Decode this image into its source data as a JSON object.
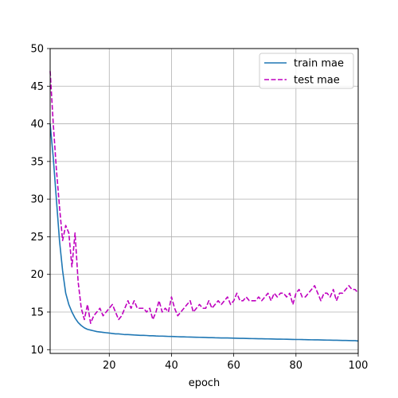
{
  "chart_data": {
    "type": "line",
    "title": "",
    "xlabel": "epoch",
    "ylabel": "",
    "xlim": [
      1,
      100
    ],
    "ylim": [
      9.5,
      50
    ],
    "xticks": [
      20,
      40,
      60,
      80,
      100
    ],
    "yticks": [
      10,
      15,
      20,
      25,
      30,
      35,
      40,
      45,
      50
    ],
    "grid": true,
    "legend": "top-right",
    "x": [
      1,
      2,
      3,
      4,
      5,
      6,
      7,
      8,
      9,
      10,
      11,
      12,
      13,
      14,
      15,
      16,
      17,
      18,
      19,
      20,
      21,
      22,
      23,
      24,
      25,
      26,
      27,
      28,
      29,
      30,
      31,
      32,
      33,
      34,
      35,
      36,
      37,
      38,
      39,
      40,
      41,
      42,
      43,
      44,
      45,
      46,
      47,
      48,
      49,
      50,
      51,
      52,
      53,
      54,
      55,
      56,
      57,
      58,
      59,
      60,
      61,
      62,
      63,
      64,
      65,
      66,
      67,
      68,
      69,
      70,
      71,
      72,
      73,
      74,
      75,
      76,
      77,
      78,
      79,
      80,
      81,
      82,
      83,
      84,
      85,
      86,
      87,
      88,
      89,
      90,
      91,
      92,
      93,
      94,
      95,
      96,
      97,
      98,
      99,
      100
    ],
    "series": [
      {
        "name": "train mae",
        "color": "#1f77b4",
        "style": "solid",
        "values": [
          40.0,
          35.5,
          30.0,
          24.5,
          20.5,
          17.5,
          16.0,
          15.0,
          14.2,
          13.6,
          13.2,
          12.9,
          12.7,
          12.6,
          12.5,
          12.4,
          12.35,
          12.3,
          12.25,
          12.2,
          12.15,
          12.1,
          12.1,
          12.05,
          12.0,
          12.0,
          11.98,
          11.95,
          11.93,
          11.9,
          11.9,
          11.88,
          11.85,
          11.85,
          11.82,
          11.8,
          11.8,
          11.78,
          11.76,
          11.75,
          11.74,
          11.72,
          11.7,
          11.7,
          11.68,
          11.67,
          11.66,
          11.65,
          11.64,
          11.63,
          11.62,
          11.6,
          11.6,
          11.58,
          11.57,
          11.56,
          11.55,
          11.55,
          11.54,
          11.53,
          11.52,
          11.5,
          11.5,
          11.49,
          11.48,
          11.47,
          11.46,
          11.45,
          11.45,
          11.44,
          11.43,
          11.42,
          11.41,
          11.4,
          11.4,
          11.39,
          11.38,
          11.37,
          11.36,
          11.35,
          11.35,
          11.34,
          11.33,
          11.32,
          11.31,
          11.3,
          11.3,
          11.29,
          11.28,
          11.27,
          11.26,
          11.25,
          11.25,
          11.24,
          11.23,
          11.22,
          11.21,
          11.2,
          11.2,
          11.15
        ]
      },
      {
        "name": "test mae",
        "color": "#bf00bf",
        "style": "dashed",
        "values": [
          47.0,
          40.0,
          34.0,
          29.0,
          24.5,
          26.5,
          25.5,
          21.0,
          25.5,
          19.0,
          15.5,
          14.0,
          16.0,
          13.5,
          14.5,
          15.0,
          15.5,
          14.5,
          15.0,
          15.5,
          16.0,
          15.0,
          14.0,
          14.5,
          15.5,
          16.5,
          15.5,
          16.5,
          15.5,
          15.5,
          15.5,
          15.0,
          15.5,
          14.0,
          15.0,
          16.5,
          15.0,
          15.5,
          15.0,
          17.0,
          15.5,
          14.5,
          15.0,
          15.5,
          16.0,
          16.5,
          15.0,
          15.5,
          16.0,
          15.5,
          15.5,
          16.5,
          15.5,
          16.0,
          16.5,
          16.0,
          16.5,
          17.0,
          16.0,
          16.5,
          17.5,
          16.5,
          16.5,
          17.0,
          16.5,
          16.5,
          16.5,
          17.0,
          16.5,
          17.0,
          17.5,
          16.5,
          17.5,
          17.0,
          17.5,
          17.5,
          17.0,
          17.5,
          16.0,
          17.5,
          18.0,
          17.0,
          17.0,
          17.5,
          18.0,
          18.5,
          17.5,
          16.5,
          17.5,
          17.5,
          17.0,
          18.0,
          16.5,
          17.5,
          17.5,
          18.0,
          18.5,
          18.0,
          18.0,
          17.5
        ]
      }
    ]
  }
}
